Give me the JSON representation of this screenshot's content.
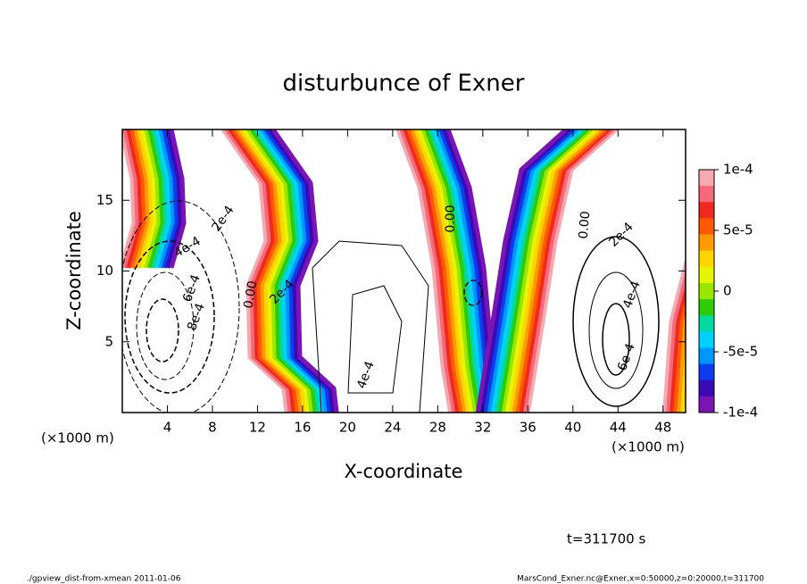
{
  "chart_data": {
    "type": "contour",
    "title": "disturbunce of Exner",
    "x_label": "X-coordinate",
    "y_label": "Z-coordinate",
    "x_unit_labels": [
      "(×1000 m)",
      "(×1000 m)"
    ],
    "xlim": [
      0,
      50
    ],
    "xticks": [
      4,
      8,
      12,
      16,
      20,
      24,
      28,
      32,
      36,
      40,
      44,
      48
    ],
    "ylim": [
      0,
      20
    ],
    "yticks": [
      5,
      10,
      15
    ],
    "contour_labels": [
      "2e-4",
      "4e-4",
      "6e-4",
      "8e-4",
      "0.00",
      "2e-4",
      "4e-4",
      "0.00",
      "0.00",
      "2e-4",
      "4e-4",
      "6e-4"
    ],
    "colorbar": {
      "lim": [
        -0.0001,
        0.0001
      ],
      "ticks": [
        {
          "value": 0.0001,
          "label": "1e-4"
        },
        {
          "value": 5e-05,
          "label": "5e-5"
        },
        0,
        {
          "value": -5e-05,
          "label": "-5e-5"
        },
        {
          "value": -0.0001,
          "label": "-1e-4"
        }
      ],
      "colors": [
        "#f7a8b0",
        "#f46a78",
        "#f0281e",
        "#ff5a00",
        "#ff9a00",
        "#ffd500",
        "#e6f500",
        "#9be600",
        "#2ecc00",
        "#00d9a0",
        "#00d2ff",
        "#0096ff",
        "#0a3cf0",
        "#3a0ab4",
        "#7a14b4"
      ]
    },
    "annotation": "t=311700 s",
    "footer_left": "./gpview_dist-from-xmean  2011-01-06",
    "footer_right": "MarsCond_Exner.nc@Exner,x=0:50000,z=0:20000,t=311700"
  }
}
